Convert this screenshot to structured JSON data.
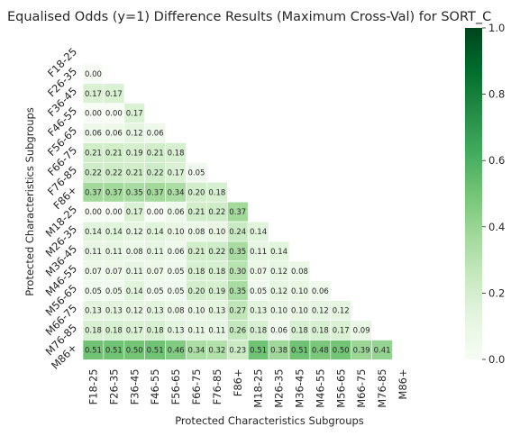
{
  "chart_data": {
    "type": "heatmap",
    "title": "Equalised Odds (y=1)  Difference Results (Maximum Cross-Val) for SORT_C",
    "xlabel": "Protected Characteristics Subgroups",
    "ylabel": "Protected Characteristics Subgroups",
    "categories": [
      "F18-25",
      "F26-35",
      "F36-45",
      "F46-55",
      "F56-65",
      "F66-75",
      "F76-85",
      "F86+",
      "M18-25",
      "M26-35",
      "M36-45",
      "M46-55",
      "M56-65",
      "M66-75",
      "M76-85",
      "M86+"
    ],
    "matrix_lower": [
      [],
      [
        0.0
      ],
      [
        0.17,
        0.17
      ],
      [
        0.0,
        0.0,
        0.17
      ],
      [
        0.06,
        0.06,
        0.12,
        0.06
      ],
      [
        0.21,
        0.21,
        0.19,
        0.21,
        0.18
      ],
      [
        0.22,
        0.22,
        0.21,
        0.22,
        0.17,
        0.05
      ],
      [
        0.37,
        0.37,
        0.35,
        0.37,
        0.34,
        0.2,
        0.18
      ],
      [
        0.0,
        0.0,
        0.17,
        0.0,
        0.06,
        0.21,
        0.22,
        0.37
      ],
      [
        0.14,
        0.14,
        0.12,
        0.14,
        0.1,
        0.08,
        0.1,
        0.24,
        0.14
      ],
      [
        0.11,
        0.11,
        0.08,
        0.11,
        0.06,
        0.21,
        0.22,
        0.35,
        0.11,
        0.14
      ],
      [
        0.07,
        0.07,
        0.11,
        0.07,
        0.05,
        0.18,
        0.18,
        0.3,
        0.07,
        0.12,
        0.08
      ],
      [
        0.05,
        0.05,
        0.14,
        0.05,
        0.05,
        0.2,
        0.19,
        0.35,
        0.05,
        0.12,
        0.1,
        0.06
      ],
      [
        0.13,
        0.13,
        0.12,
        0.13,
        0.08,
        0.1,
        0.13,
        0.27,
        0.13,
        0.1,
        0.1,
        0.12,
        0.12
      ],
      [
        0.18,
        0.18,
        0.17,
        0.18,
        0.13,
        0.11,
        0.11,
        0.26,
        0.18,
        0.06,
        0.18,
        0.18,
        0.17,
        0.09
      ],
      [
        0.51,
        0.51,
        0.5,
        0.51,
        0.46,
        0.34,
        0.32,
        0.23,
        0.51,
        0.38,
        0.51,
        0.48,
        0.5,
        0.39,
        0.41
      ]
    ],
    "value_range": [
      0,
      1
    ],
    "colormap": "Greens",
    "colorbar_ticks": [
      "0.0",
      "0.2",
      "0.4",
      "0.6",
      "0.8",
      "1.0"
    ],
    "legend_position": "right"
  }
}
